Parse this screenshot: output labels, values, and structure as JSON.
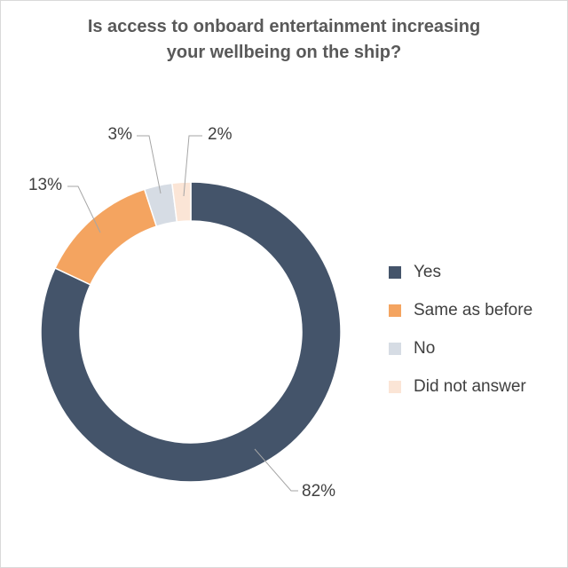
{
  "chart_data": {
    "type": "pie",
    "title": "Is access to onboard entertainment increasing your wellbeing on the ship?",
    "title_lines": [
      "Is access to onboard entertainment increasing",
      "your wellbeing on the ship?"
    ],
    "donut": true,
    "series": [
      {
        "name": "Yes",
        "value": 82,
        "label": "82%",
        "color": "#44546a"
      },
      {
        "name": "Same as before",
        "value": 13,
        "label": "13%",
        "color": "#f4a460"
      },
      {
        "name": "No",
        "value": 3,
        "label": "3%",
        "color": "#d6dce4"
      },
      {
        "name": "Did not answer",
        "value": 2,
        "label": "2%",
        "color": "#fbe5d6"
      }
    ],
    "legend": "right"
  }
}
